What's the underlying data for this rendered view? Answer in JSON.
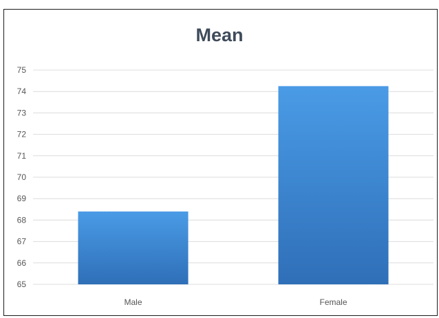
{
  "chart_data": {
    "type": "bar",
    "title": "Mean",
    "categories": [
      "Male",
      "Female"
    ],
    "values": [
      68.4,
      74.25
    ],
    "ylim": [
      65,
      75
    ],
    "yticks": [
      65,
      66,
      67,
      68,
      69,
      70,
      71,
      72,
      73,
      74,
      75
    ],
    "xlabel": "",
    "ylabel": "",
    "grid": true,
    "legend": "none",
    "colors": {
      "bar_top": "#4a9be6",
      "bar_bottom": "#2f6fb8",
      "grid": "#dcdcdc"
    }
  }
}
